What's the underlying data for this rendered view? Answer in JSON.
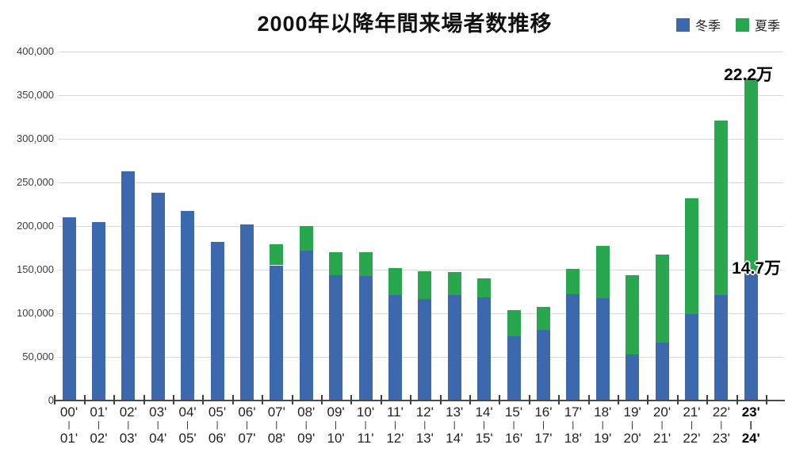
{
  "chart_data": {
    "type": "bar",
    "stacked": true,
    "title": "2000年以降年間来場者数推移",
    "categories_start": [
      "00'",
      "01'",
      "02'",
      "03'",
      "04'",
      "05'",
      "06'",
      "07'",
      "08'",
      "09'",
      "10'",
      "11'",
      "12'",
      "13'",
      "14'",
      "15'",
      "16'",
      "17'",
      "18'",
      "19'",
      "20'",
      "21'",
      "22'",
      "23'"
    ],
    "categories_end": [
      "01'",
      "02'",
      "03'",
      "04'",
      "05'",
      "06'",
      "07'",
      "08'",
      "09'",
      "10'",
      "11'",
      "12'",
      "13'",
      "14'",
      "15'",
      "16'",
      "17'",
      "18'",
      "19'",
      "20'",
      "21'",
      "22'",
      "23'",
      "24'"
    ],
    "category_separator": "|",
    "bold_last_category": true,
    "series": [
      {
        "name": "冬季",
        "color": "#3c69ad",
        "values": [
          210000,
          205000,
          263000,
          238000,
          217000,
          182000,
          202000,
          155000,
          172000,
          144000,
          143000,
          121000,
          116000,
          121000,
          118000,
          74000,
          81000,
          122000,
          117000,
          53000,
          66000,
          99000,
          121000,
          147000
        ]
      },
      {
        "name": "夏季",
        "color": "#28a74e",
        "values": [
          0,
          0,
          0,
          0,
          0,
          0,
          0,
          24000,
          28000,
          26000,
          27000,
          31000,
          32000,
          26000,
          22000,
          30000,
          26000,
          29000,
          60000,
          91000,
          101000,
          133000,
          200000,
          222000
        ]
      }
    ],
    "ylim": [
      0,
      400000
    ],
    "y_tick_step": 50000,
    "y_tick_labels": [
      "400,000",
      "350,000",
      "300,000",
      "250,000",
      "200,000",
      "150,000",
      "100,000",
      "50,000",
      "0"
    ],
    "grid": true,
    "legend_position": "top-right",
    "annotations": [
      {
        "id": "last-bar-summer-total",
        "text": "22.2万"
      },
      {
        "id": "last-bar-winter-total",
        "text": "14.7万"
      }
    ]
  }
}
